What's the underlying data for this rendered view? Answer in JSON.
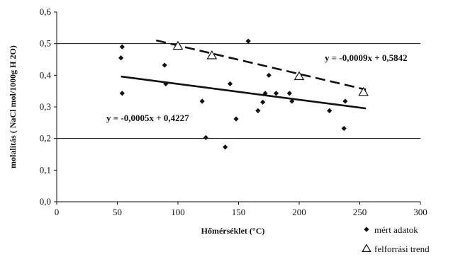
{
  "chart_data": {
    "type": "scatter",
    "title": "",
    "xlabel": "Hőmérséklet (°C)",
    "ylabel": "molalitás ( NaCl mol/1000g H 2O)",
    "xlim": [
      0,
      300
    ],
    "ylim": [
      0,
      0.6
    ],
    "x_ticks": [
      0,
      50,
      100,
      150,
      200,
      250,
      300
    ],
    "y_ticks": [
      "0,0",
      "0,1",
      "0,2",
      "0,3",
      "0,4",
      "0,5",
      "0,6"
    ],
    "y_tick_values": [
      0,
      0.1,
      0.2,
      0.3,
      0.4,
      0.5,
      0.6
    ],
    "gridlines_y": [
      0.2,
      0.5
    ],
    "legend_position": "bottom-right",
    "series": [
      {
        "name": "mért adatok",
        "marker": "diamond",
        "color": "#111111",
        "points": [
          [
            53,
            0.455
          ],
          [
            54,
            0.49
          ],
          [
            54,
            0.343
          ],
          [
            89,
            0.432
          ],
          [
            90,
            0.373
          ],
          [
            120,
            0.318
          ],
          [
            123,
            0.203
          ],
          [
            139,
            0.173
          ],
          [
            143,
            0.373
          ],
          [
            148,
            0.262
          ],
          [
            158,
            0.508
          ],
          [
            166,
            0.288
          ],
          [
            170,
            0.315
          ],
          [
            172,
            0.343
          ],
          [
            175,
            0.4
          ],
          [
            181,
            0.343
          ],
          [
            192,
            0.343
          ],
          [
            194,
            0.318
          ],
          [
            225,
            0.288
          ],
          [
            237,
            0.232
          ],
          [
            238,
            0.318
          ]
        ]
      },
      {
        "name": "felforrási trend",
        "marker": "triangle-open",
        "color": "#111111",
        "points": [
          [
            100,
            0.493
          ],
          [
            128,
            0.463
          ],
          [
            200,
            0.397
          ],
          [
            253,
            0.347
          ]
        ]
      }
    ],
    "trendlines": [
      {
        "equation": "y = -0,0005x + 0,4227",
        "style": "solid",
        "x_range": [
          53,
          255
        ]
      },
      {
        "equation": "y = -0,0009x + 0,5842",
        "style": "dashed",
        "x_range": [
          82,
          255
        ]
      }
    ]
  }
}
